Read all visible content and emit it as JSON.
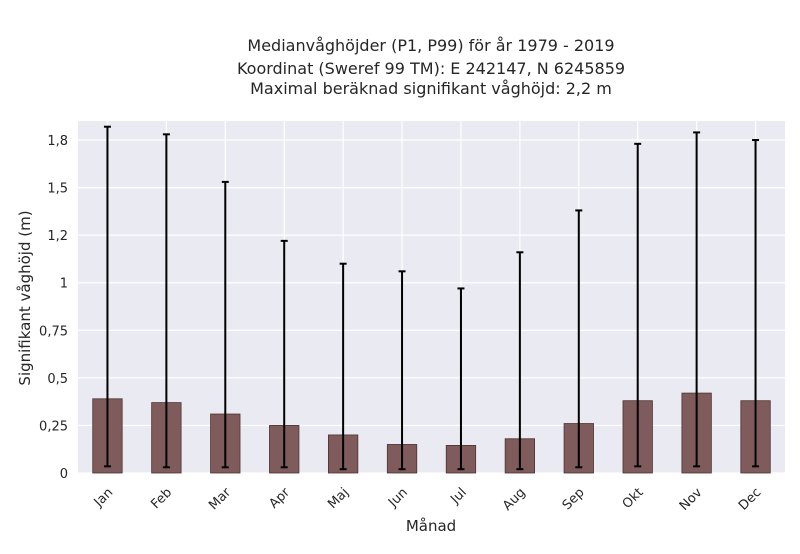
{
  "chart_data": {
    "type": "bar",
    "title_lines": [
      "Medianvåghöjder (P1, P99) för år 1979 - 2019",
      "Koordinat (Sweref 99 TM): E 242147, N 6245859",
      "Maximal beräknad signifikant våghöjd: 2,2 m"
    ],
    "xlabel": "Månad",
    "ylabel": "Signifikant våghöjd (m)",
    "categories": [
      "Jan",
      "Feb",
      "Mar",
      "Apr",
      "Maj",
      "Jun",
      "Jul",
      "Aug",
      "Sep",
      "Okt",
      "Nov",
      "Dec"
    ],
    "series": [
      {
        "values": [
          0.39,
          0.37,
          0.31,
          0.25,
          0.2,
          0.15,
          0.145,
          0.18,
          0.26,
          0.38,
          0.42,
          0.38
        ],
        "p1": [
          0.035,
          0.03,
          0.03,
          0.03,
          0.02,
          0.02,
          0.02,
          0.02,
          0.03,
          0.035,
          0.035,
          0.035
        ],
        "p99": [
          1.82,
          1.78,
          1.53,
          1.22,
          1.1,
          1.06,
          0.97,
          1.16,
          1.38,
          1.73,
          1.79,
          1.75
        ]
      }
    ],
    "yticks": [
      0,
      0.25,
      0.5,
      0.75,
      1,
      1.25,
      1.5,
      1.75
    ],
    "ytick_labels": [
      "0",
      "0,25",
      "0,5",
      "0,75",
      "1",
      "1,2",
      "1,5",
      "1,8"
    ],
    "ylim": [
      0,
      1.85
    ],
    "grid": true,
    "colors": {
      "background": "#eaeaf2",
      "bar_fill": "#7f5b5b",
      "bar_edge": "#4a3434",
      "errorbar": "#000000",
      "grid": "#ffffff"
    }
  }
}
